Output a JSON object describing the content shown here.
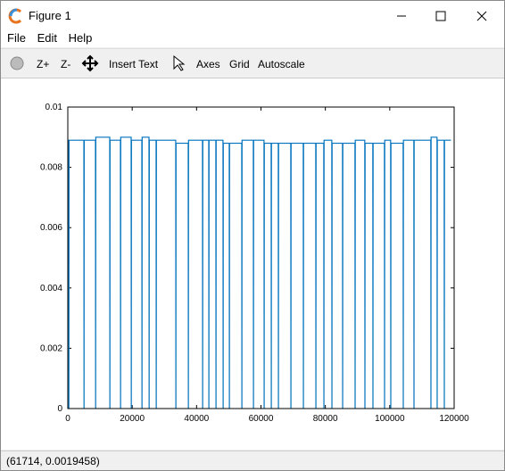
{
  "window": {
    "title": "Figure 1",
    "menu": [
      "File",
      "Edit",
      "Help"
    ],
    "toolbar": [
      "Z+",
      "Z-",
      "Insert Text",
      "Axes",
      "Grid",
      "Autoscale"
    ],
    "status": "(61714, 0.0019458)"
  },
  "chart_data": {
    "type": "line",
    "color": "#0072bd",
    "x": [
      0,
      277,
      327,
      377,
      4990,
      5040,
      5090,
      8590,
      8640,
      8690,
      13020,
      13070,
      13120,
      16340,
      16390,
      16440,
      19670,
      19720,
      19770,
      22990,
      23040,
      23090,
      25210,
      25260,
      25310,
      27420,
      27470,
      27520,
      33520,
      33570,
      33620,
      37400,
      37450,
      37500,
      41830,
      41880,
      41930,
      43770,
      43820,
      43870,
      45980,
      46030,
      46080,
      48200,
      48250,
      48300,
      50140,
      50190,
      50240,
      54020,
      54070,
      54120,
      57620,
      57670,
      57720,
      60940,
      60990,
      61040,
      63160,
      63210,
      63260,
      65370,
      65420,
      65470,
      69250,
      69300,
      69350,
      73130,
      73180,
      73230,
      77010,
      77060,
      77110,
      79500,
      79550,
      79600,
      81990,
      82040,
      82090,
      85320,
      85370,
      85420,
      89190,
      89240,
      89290,
      92240,
      92290,
      92340,
      94730,
      94780,
      94830,
      98340,
      98390,
      98440,
      100270,
      100320,
      100370,
      104150,
      104200,
      104250,
      107480,
      107530,
      107580,
      112740,
      112790,
      112840,
      114680,
      114730,
      114780,
      116900,
      116950,
      117000,
      119000
    ],
    "values": [
      0.0089,
      0.0089,
      0,
      0.0089,
      0.0089,
      0,
      0.0089,
      0.0089,
      0,
      0.009,
      0.009,
      0,
      0.0089,
      0.0089,
      0,
      0.009,
      0.009,
      0,
      0.0089,
      0.0089,
      0,
      0.009,
      0.009,
      0,
      0.0089,
      0.0089,
      0,
      0.0089,
      0.0089,
      0,
      0.0088,
      0.0088,
      0,
      0.0089,
      0.0089,
      0,
      0.0089,
      0.0089,
      0,
      0.0089,
      0.0089,
      0,
      0.0089,
      0.0089,
      0,
      0.0088,
      0.0088,
      0,
      0.0088,
      0.0088,
      0,
      0.0089,
      0.0089,
      0,
      0.0089,
      0.0089,
      0,
      0.0088,
      0.0088,
      0,
      0.0088,
      0.0088,
      0,
      0.0088,
      0.0088,
      0,
      0.0088,
      0.0088,
      0,
      0.0088,
      0.0088,
      0,
      0.0088,
      0.0088,
      0,
      0.0089,
      0.0089,
      0,
      0.0088,
      0.0088,
      0,
      0.0088,
      0.0088,
      0,
      0.0089,
      0.0089,
      0,
      0.0088,
      0.0088,
      0,
      0.0088,
      0.0088,
      0,
      0.0089,
      0.0089,
      0,
      0.0088,
      0.0088,
      0,
      0.0089,
      0.0089,
      0,
      0.0089,
      0.0089,
      0,
      0.009,
      0.009,
      0,
      0.0089,
      0.0089,
      0,
      0.0089,
      0.0089
    ],
    "xlim": [
      0,
      120000
    ],
    "xticks": [
      0,
      20000,
      40000,
      60000,
      80000,
      100000,
      120000
    ],
    "ylim": [
      0,
      0.01
    ],
    "yticks": [
      0,
      0.002,
      0.004,
      0.006,
      0.008,
      0.01
    ]
  }
}
